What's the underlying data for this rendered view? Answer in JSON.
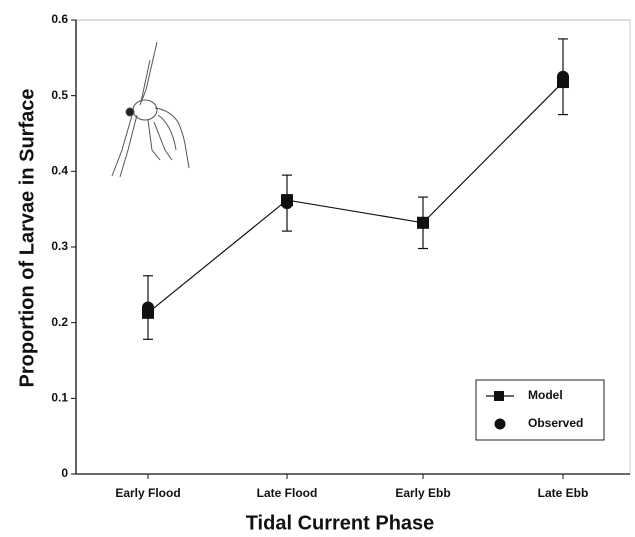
{
  "chart_data": {
    "type": "line",
    "x_label": "Tidal Current Phase",
    "y_label": "Proportion of Larvae in Surface",
    "categories": [
      "Early Flood",
      "Late Flood",
      "Early Ebb",
      "Late Ebb"
    ],
    "series": [
      {
        "name": "Model",
        "color": "#111111",
        "marker": "square",
        "values": [
          0.213,
          0.362,
          0.332,
          0.518
        ]
      },
      {
        "name": "Observed",
        "color": "#111111",
        "marker": "circle",
        "values": [
          0.22,
          0.358,
          0.332,
          0.525
        ],
        "errors": [
          0.042,
          0.037,
          0.034,
          0.05
        ]
      }
    ],
    "ylim": [
      0,
      0.6
    ],
    "yticks": [
      0,
      0.1,
      0.2,
      0.3,
      0.4,
      0.5,
      0.6
    ],
    "legend": "lower right"
  }
}
